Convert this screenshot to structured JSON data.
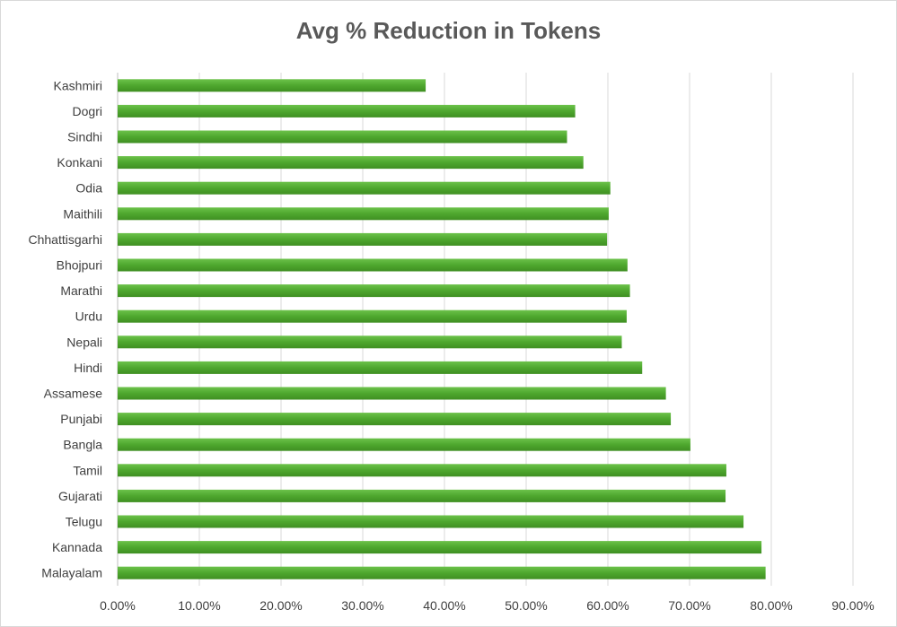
{
  "chart_data": {
    "type": "bar",
    "orientation": "horizontal",
    "title": "Avg % Reduction in Tokens",
    "xlabel": "",
    "ylabel": "",
    "xlim": [
      0,
      0.9
    ],
    "x_ticks": [
      0,
      0.1,
      0.2,
      0.3,
      0.4,
      0.5,
      0.6,
      0.7,
      0.8,
      0.9
    ],
    "x_tick_labels": [
      "0.00%",
      "10.00%",
      "20.00%",
      "30.00%",
      "40.00%",
      "50.00%",
      "60.00%",
      "70.00%",
      "80.00%",
      "90.00%"
    ],
    "grid": "vertical",
    "legend": "none",
    "bar_color": "#4ea72e",
    "categories": [
      "Kashmiri",
      "Dogri",
      "Sindhi",
      "Konkani",
      "Odia",
      "Maithili",
      "Chhattisgarhi",
      "Bhojpuri",
      "Marathi",
      "Urdu",
      "Nepali",
      "Hindi",
      "Assamese",
      "Punjabi",
      "Bangla",
      "Tamil",
      "Gujarati",
      "Telugu",
      "Kannada",
      "Malayalam"
    ],
    "values": [
      0.377,
      0.56,
      0.55,
      0.57,
      0.603,
      0.601,
      0.599,
      0.624,
      0.627,
      0.623,
      0.617,
      0.642,
      0.671,
      0.677,
      0.701,
      0.745,
      0.744,
      0.766,
      0.788,
      0.793
    ]
  }
}
